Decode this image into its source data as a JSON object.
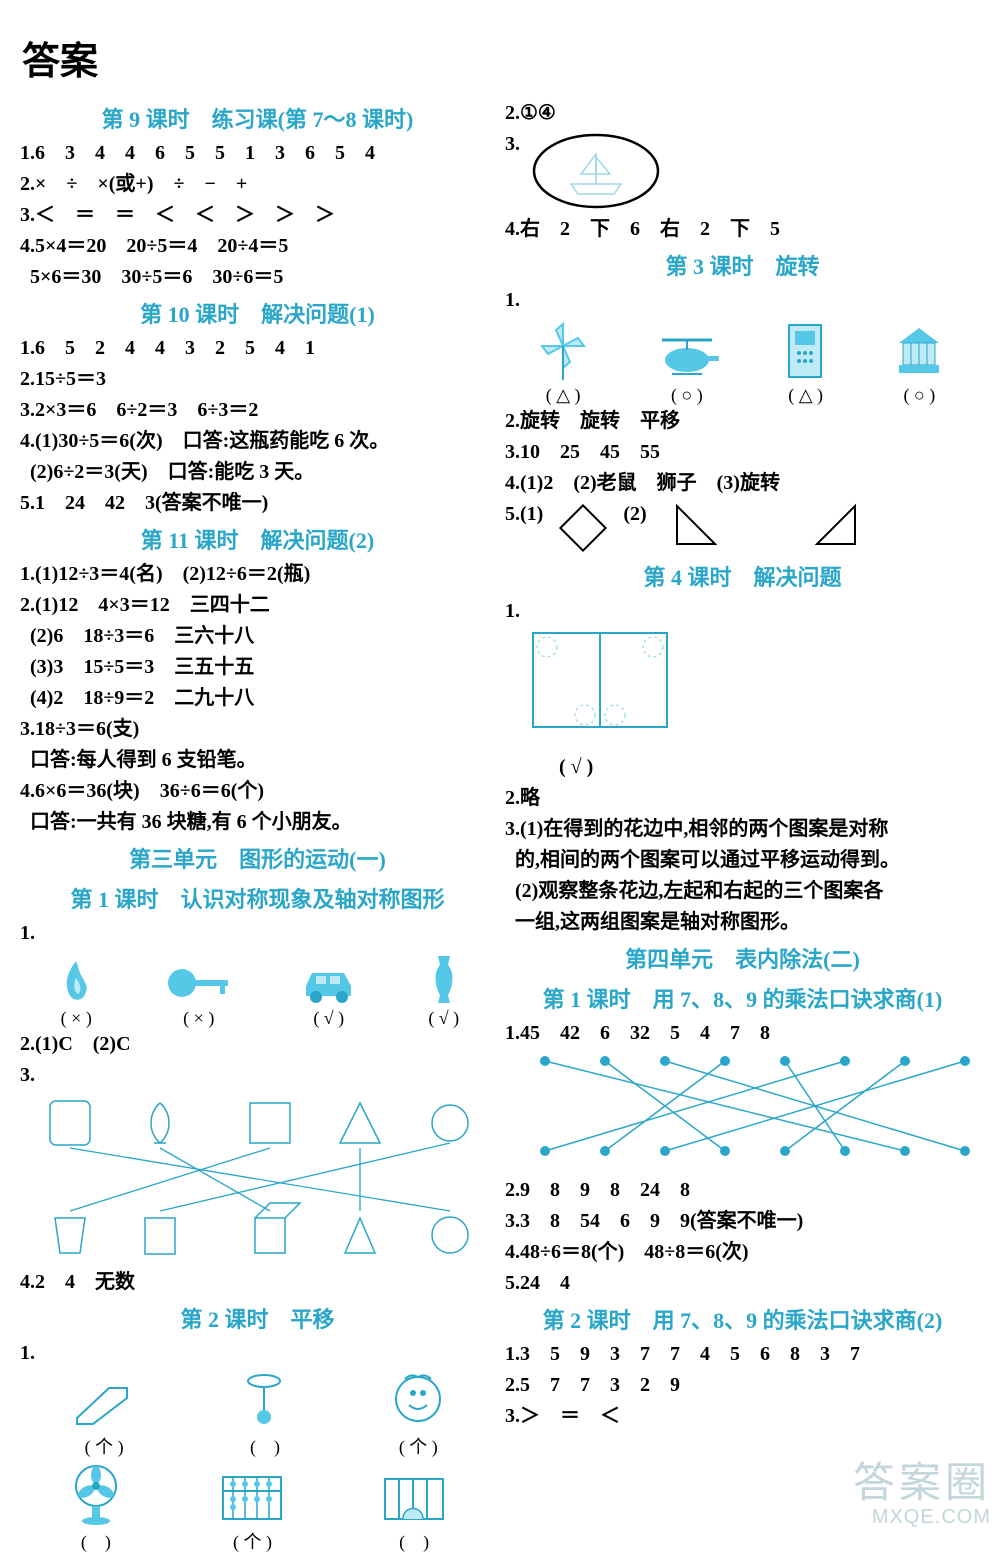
{
  "title": "答案",
  "colors": {
    "accent": "#2aa6c9",
    "text": "#000000",
    "iconFill": "#55c8e8",
    "iconStroke": "#2aa6c9",
    "bg": "#ffffff"
  },
  "left": {
    "h9": "第 9 课时　练习课(第 7～8 课时)",
    "l1": "1.6　3　4　4　6　5　5　1　3　6　5　4",
    "l2": "2.×　÷　×(或+)　÷　−　+",
    "l3": "3.＜　＝　＝　＜　＜　＞　＞　＞",
    "l4a": "4.5×4＝20　20÷5＝4　20÷4＝5",
    "l4b": "  5×6＝30　30÷5＝6　30÷6＝5",
    "h10": "第 10 课时　解决问题(1)",
    "l10_1": "1.6　5　2　4　4　3　2　5　4　1",
    "l10_2": "2.15÷5＝3",
    "l10_3": "3.2×3＝6　6÷2＝3　6÷3＝2",
    "l10_4a": "4.(1)30÷5＝6(次)　口答:这瓶药能吃 6 次。",
    "l10_4b": "  (2)6÷2＝3(天)　口答:能吃 3 天。",
    "l10_5": "5.1　24　42　3(答案不唯一)",
    "h11": "第 11 课时　解决问题(2)",
    "l11_1": "1.(1)12÷3＝4(名)　(2)12÷6＝2(瓶)",
    "l11_2a": "2.(1)12　4×3＝12　三四十二",
    "l11_2b": "  (2)6　18÷3＝6　三六十八",
    "l11_2c": "  (3)3　15÷5＝3　三五十五",
    "l11_2d": "  (4)2　18÷9＝2　二九十八",
    "l11_3a": "3.18÷3＝6(支)",
    "l11_3b": "  口答:每人得到 6 支铅笔。",
    "l11_4a": "4.6×6＝36(块)　36÷6＝6(个)",
    "l11_4b": "  口答:一共有 36 块糖,有 6 个小朋友。",
    "hU3": "第三单元　图形的运动(一)",
    "hU3_1": "第 1 课时　认识对称现象及轴对称图形",
    "u3_1_num": "1.",
    "u3_1_caps": [
      "( × )",
      "( × )",
      "( √ )",
      "( √ )"
    ],
    "u3_2": "2.(1)C　(2)C",
    "u3_3_num": "3.",
    "u3_4": "4.2　4　无数",
    "hU3_2": "第 2 课时　平移",
    "u3_2_num": "1.",
    "u3_2_caps_top": [
      "( 个 )",
      "(　)",
      "( 个 )"
    ],
    "u3_2_caps_bot": [
      "(　)",
      "( 个 )",
      "(　)"
    ]
  },
  "right": {
    "r2": "2.①④",
    "r3_num": "3.",
    "r4": "4.右　2　下　6　右　2　下　5",
    "h3": "第 3 课时　旋转",
    "r3_1_num": "1.",
    "r3_1_caps": [
      "( △ )",
      "( ○ )",
      "( △ )",
      "( ○ )"
    ],
    "r3_2": "2.旋转　旋转　平移",
    "r3_3": "3.10　25　45　55",
    "r3_4": "4.(1)2　(2)老鼠　狮子　(3)旋转",
    "r3_5": "5.(1)　　　　(2)",
    "h4": "第 4 课时　解决问题",
    "r4_1_num": "1.",
    "r4_1_cap": "( √ )",
    "r4_2": "2.略",
    "r4_3a": "3.(1)在得到的花边中,相邻的两个图案是对称",
    "r4_3b": "  的,相间的两个图案可以通过平移运动得到。",
    "r4_3c": "  (2)观察整条花边,左起和右起的三个图案各",
    "r4_3d": "  一组,这两组图案是轴对称图形。",
    "hU4": "第四单元　表内除法(二)",
    "hU4_1": "第 1 课时　用 7、8、9 的乘法口诀求商(1)",
    "u4_1": "1.45　42　6　32　5　4　7　8",
    "u4_match": {
      "top_x": [
        40,
        100,
        160,
        220,
        280,
        340,
        400,
        460
      ],
      "bot_x": [
        40,
        100,
        160,
        220,
        280,
        340,
        400,
        460
      ],
      "edges": [
        [
          0,
          6
        ],
        [
          1,
          3
        ],
        [
          2,
          7
        ],
        [
          3,
          1
        ],
        [
          4,
          5
        ],
        [
          5,
          0
        ],
        [
          6,
          4
        ],
        [
          7,
          2
        ]
      ],
      "node_r": 5,
      "color": "#2aa6c9",
      "h": 110
    },
    "u4_2": "2.9　8　9　8　24　8",
    "u4_3": "3.3　8　54　6　9　9(答案不唯一)",
    "u4_4": "4.48÷6＝8(个)　48÷8＝6(次)",
    "u4_5": "5.24　4",
    "hU4_2": "第 2 课时　用 7、8、9 的乘法口诀求商(2)",
    "u4b_1": "1.3　5　9　3　7　7　4　5　6　8　3　7",
    "u4b_2": "2.5　7　7　3　2　9",
    "u4b_3": "3.＞　＝　＜"
  },
  "watermark": {
    "line1": "答案圈",
    "line2": "MXQE.COM"
  }
}
